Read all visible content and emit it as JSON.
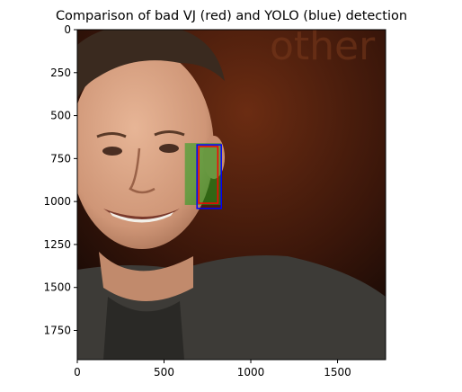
{
  "chart_data": {
    "type": "image",
    "title": "Comparison of bad VJ (red) and YOLO (blue) detection",
    "image_description_label": "portrait photo of a smiling man",
    "xlim": [
      0,
      1777
    ],
    "ylim": [
      1920,
      0
    ],
    "x_ticks": [
      0,
      500,
      1000,
      1500
    ],
    "y_ticks": [
      0,
      250,
      500,
      750,
      1000,
      1250,
      1500,
      1750
    ],
    "x_tick_labels": [
      "0",
      "500",
      "1000",
      "1500"
    ],
    "y_tick_labels": [
      "0",
      "250",
      "500",
      "750",
      "1000",
      "1250",
      "1500",
      "1750"
    ],
    "boxes": [
      {
        "label": "VJ",
        "color": "#ff0000",
        "x0": 700,
        "y0": 680,
        "x1": 810,
        "y1": 1010
      },
      {
        "label": "YOLO",
        "color": "#0000ff",
        "x0": 690,
        "y0": 670,
        "x1": 830,
        "y1": 1040
      },
      {
        "label": "green-region",
        "color": "#1aa01a",
        "x0": 620,
        "y0": 660,
        "x1": 830,
        "y1": 1020
      }
    ],
    "colors": {
      "background_dark": "#1a0a05",
      "background_warm": "#5a2a12",
      "skin": "#d9a282",
      "hair": "#3b2a1f",
      "jacket": "#3c3a36",
      "shirt": "#2b2a28"
    }
  }
}
